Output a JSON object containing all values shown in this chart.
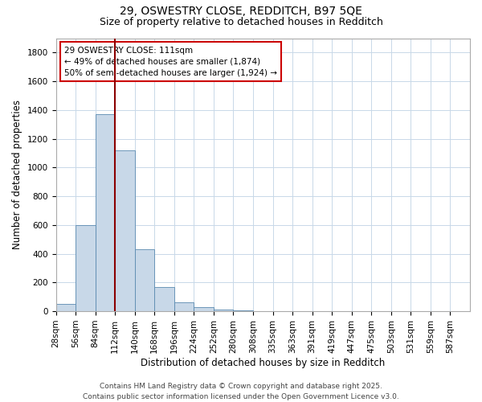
{
  "title1": "29, OSWESTRY CLOSE, REDDITCH, B97 5QE",
  "title2": "Size of property relative to detached houses in Redditch",
  "xlabel": "Distribution of detached houses by size in Redditch",
  "ylabel": "Number of detached properties",
  "bin_labels": [
    "28sqm",
    "56sqm",
    "84sqm",
    "112sqm",
    "140sqm",
    "168sqm",
    "196sqm",
    "224sqm",
    "252sqm",
    "280sqm",
    "308sqm",
    "335sqm",
    "363sqm",
    "391sqm",
    "419sqm",
    "447sqm",
    "475sqm",
    "503sqm",
    "531sqm",
    "559sqm",
    "587sqm"
  ],
  "bar_heights": [
    50,
    600,
    1370,
    1120,
    430,
    170,
    60,
    30,
    10,
    5,
    2,
    1,
    1,
    0,
    0,
    0,
    0,
    0,
    0,
    0,
    0
  ],
  "bar_color": "#c8d8e8",
  "bar_edge_color": "#5a8ab0",
  "vline_x": 3,
  "vline_color": "#8b0000",
  "annotation_line1": "29 OSWESTRY CLOSE: 111sqm",
  "annotation_line2": "← 49% of detached houses are smaller (1,874)",
  "annotation_line3": "50% of semi-detached houses are larger (1,924) →",
  "annotation_box_color": "#ffffff",
  "annotation_box_edge_color": "#cc0000",
  "ylim": [
    0,
    1900
  ],
  "yticks": [
    0,
    200,
    400,
    600,
    800,
    1000,
    1200,
    1400,
    1600,
    1800
  ],
  "background_color": "#ffffff",
  "grid_color": "#c8d8e8",
  "footer_text": "Contains HM Land Registry data © Crown copyright and database right 2025.\nContains public sector information licensed under the Open Government Licence v3.0.",
  "title_fontsize": 10,
  "subtitle_fontsize": 9,
  "axis_label_fontsize": 8.5,
  "tick_fontsize": 7.5,
  "annotation_fontsize": 7.5,
  "footer_fontsize": 6.5
}
